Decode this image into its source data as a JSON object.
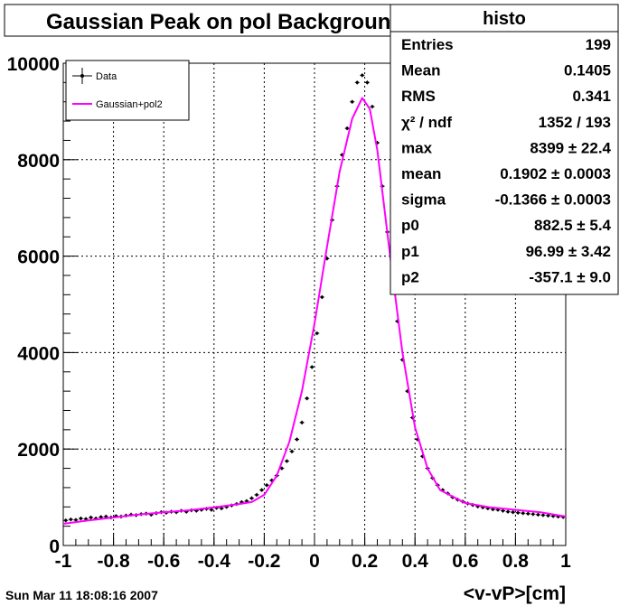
{
  "chart_data": {
    "type": "line",
    "title": "Gaussian Peak on pol Background",
    "xlabel": "<v-vP>[cm]",
    "ylabel": "",
    "xlim": [
      -1,
      1
    ],
    "ylim": [
      0,
      10000
    ],
    "x_ticks": [
      "-1",
      "-0.8",
      "-0.6",
      "-0.4",
      "-0.2",
      "0",
      "0.2",
      "0.4",
      "0.6",
      "0.8",
      "1"
    ],
    "y_ticks": [
      "0",
      "2000",
      "4000",
      "6000",
      "8000",
      "10000"
    ],
    "grid": true,
    "legend_position": "top-left",
    "legend": [
      {
        "label": "Data",
        "style": "markers-with-error-bars",
        "color": "#000000"
      },
      {
        "label": "Gaussian+pol2",
        "style": "line",
        "color": "#ff00ff"
      }
    ],
    "series": [
      {
        "name": "Data",
        "kind": "points",
        "color": "#000000",
        "x": [
          -0.99,
          -0.97,
          -0.95,
          -0.93,
          -0.91,
          -0.89,
          -0.87,
          -0.85,
          -0.83,
          -0.81,
          -0.79,
          -0.77,
          -0.75,
          -0.73,
          -0.71,
          -0.69,
          -0.67,
          -0.65,
          -0.63,
          -0.61,
          -0.59,
          -0.57,
          -0.55,
          -0.53,
          -0.51,
          -0.49,
          -0.47,
          -0.45,
          -0.43,
          -0.41,
          -0.39,
          -0.37,
          -0.35,
          -0.33,
          -0.31,
          -0.29,
          -0.27,
          -0.25,
          -0.23,
          -0.21,
          -0.19,
          -0.17,
          -0.15,
          -0.13,
          -0.11,
          -0.09,
          -0.07,
          -0.05,
          -0.03,
          -0.01,
          0.01,
          0.03,
          0.05,
          0.07,
          0.09,
          0.11,
          0.13,
          0.15,
          0.17,
          0.19,
          0.21,
          0.23,
          0.25,
          0.27,
          0.29,
          0.31,
          0.33,
          0.35,
          0.37,
          0.39,
          0.41,
          0.43,
          0.45,
          0.47,
          0.49,
          0.51,
          0.53,
          0.55,
          0.57,
          0.59,
          0.61,
          0.63,
          0.65,
          0.67,
          0.69,
          0.71,
          0.73,
          0.75,
          0.77,
          0.79,
          0.81,
          0.83,
          0.85,
          0.87,
          0.89,
          0.91,
          0.93,
          0.95,
          0.97,
          0.99
        ],
        "y": [
          520,
          540,
          530,
          560,
          550,
          580,
          560,
          590,
          600,
          580,
          610,
          600,
          620,
          640,
          630,
          650,
          660,
          640,
          670,
          690,
          680,
          700,
          690,
          720,
          700,
          730,
          720,
          740,
          760,
          740,
          780,
          770,
          800,
          830,
          860,
          900,
          920,
          980,
          1050,
          1150,
          1250,
          1350,
          1450,
          1600,
          1750,
          1950,
          2200,
          2550,
          3050,
          3700,
          4400,
          5150,
          5950,
          6750,
          7450,
          8100,
          8650,
          9200,
          9600,
          9750,
          9600,
          9100,
          8350,
          7450,
          6500,
          5500,
          4650,
          3850,
          3200,
          2650,
          2200,
          1850,
          1600,
          1400,
          1250,
          1150,
          1080,
          1000,
          950,
          910,
          870,
          840,
          810,
          790,
          770,
          750,
          740,
          720,
          700,
          690,
          680,
          670,
          660,
          650,
          640,
          630,
          620,
          610,
          600,
          590
        ],
        "yerr": 40
      },
      {
        "name": "Gaussian+pol2",
        "kind": "curve",
        "color": "#ff00ff",
        "x": [
          -1.0,
          -0.9,
          -0.8,
          -0.7,
          -0.6,
          -0.5,
          -0.4,
          -0.3,
          -0.25,
          -0.2,
          -0.15,
          -0.1,
          -0.05,
          0.0,
          0.05,
          0.1,
          0.15,
          0.19,
          0.22,
          0.25,
          0.3,
          0.35,
          0.4,
          0.45,
          0.5,
          0.6,
          0.7,
          0.8,
          0.9,
          1.0
        ],
        "y": [
          450,
          520,
          580,
          640,
          690,
          730,
          790,
          860,
          900,
          1050,
          1450,
          2150,
          3200,
          4600,
          6200,
          7750,
          8850,
          9280,
          9050,
          8200,
          6050,
          4000,
          2450,
          1600,
          1150,
          880,
          790,
          740,
          690,
          600
        ]
      }
    ]
  },
  "stats_box": {
    "title": "histo",
    "rows": [
      {
        "label": "Entries",
        "value": "199"
      },
      {
        "label": "Mean",
        "value": "0.1405"
      },
      {
        "label": "RMS",
        "value": "0.341"
      },
      {
        "label": "χ² / ndf",
        "value": "1352 / 193"
      },
      {
        "label": "max",
        "value": "8399 ± 22.4"
      },
      {
        "label": "mean",
        "value": "0.1902 ± 0.0003"
      },
      {
        "label": "sigma",
        "value": "-0.1366 ± 0.0003"
      },
      {
        "label": "p0",
        "value": "882.5 ± 5.4"
      },
      {
        "label": "p1",
        "value": "96.99 ± 3.42"
      },
      {
        "label": "p2",
        "value": "-357.1 ± 9.0"
      }
    ]
  },
  "timestamp": "Sun Mar 11 18:08:16 2007"
}
